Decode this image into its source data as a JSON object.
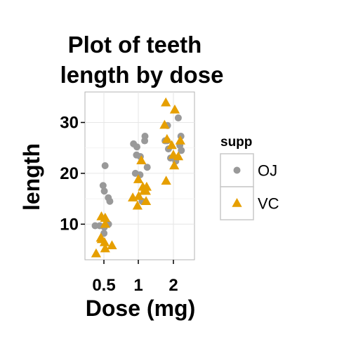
{
  "chart_data": {
    "type": "scatter",
    "title_lines": [
      "Plot of teeth",
      "length by dose"
    ],
    "xlabel": "Dose (mg)",
    "ylabel": "length",
    "categories": [
      "0.5",
      "1",
      "2"
    ],
    "x_ticks": [
      "0.5",
      "1",
      "2"
    ],
    "y_ticks": [
      10,
      20,
      30
    ],
    "ylim": [
      3,
      36
    ],
    "grid": true,
    "legend": {
      "title": "supp",
      "position": "right",
      "entries": [
        {
          "label": "OJ",
          "shape": "circle",
          "color": "#999999"
        },
        {
          "label": "VC",
          "shape": "triangle",
          "color": "#E69F00"
        }
      ]
    },
    "series": [
      {
        "name": "OJ",
        "color": "#999999",
        "points": [
          {
            "x": "0.5",
            "y": 15.2
          },
          {
            "x": "0.5",
            "y": 21.5
          },
          {
            "x": "0.5",
            "y": 17.6
          },
          {
            "x": "0.5",
            "y": 9.7
          },
          {
            "x": "0.5",
            "y": 14.5
          },
          {
            "x": "0.5",
            "y": 10.0
          },
          {
            "x": "0.5",
            "y": 8.2
          },
          {
            "x": "0.5",
            "y": 9.4
          },
          {
            "x": "0.5",
            "y": 16.5
          },
          {
            "x": "0.5",
            "y": 9.7
          },
          {
            "x": "1",
            "y": 19.7
          },
          {
            "x": "1",
            "y": 23.3
          },
          {
            "x": "1",
            "y": 23.6
          },
          {
            "x": "1",
            "y": 26.4
          },
          {
            "x": "1",
            "y": 20.0
          },
          {
            "x": "1",
            "y": 25.2
          },
          {
            "x": "1",
            "y": 25.8
          },
          {
            "x": "1",
            "y": 21.2
          },
          {
            "x": "1",
            "y": 14.5
          },
          {
            "x": "1",
            "y": 27.3
          },
          {
            "x": "2",
            "y": 25.5
          },
          {
            "x": "2",
            "y": 26.4
          },
          {
            "x": "2",
            "y": 22.4
          },
          {
            "x": "2",
            "y": 24.5
          },
          {
            "x": "2",
            "y": 24.8
          },
          {
            "x": "2",
            "y": 30.9
          },
          {
            "x": "2",
            "y": 26.4
          },
          {
            "x": "2",
            "y": 27.3
          },
          {
            "x": "2",
            "y": 29.4
          },
          {
            "x": "2",
            "y": 23.0
          }
        ]
      },
      {
        "name": "VC",
        "color": "#E69F00",
        "points": [
          {
            "x": "0.5",
            "y": 4.2
          },
          {
            "x": "0.5",
            "y": 11.5
          },
          {
            "x": "0.5",
            "y": 7.3
          },
          {
            "x": "0.5",
            "y": 5.8
          },
          {
            "x": "0.5",
            "y": 6.4
          },
          {
            "x": "0.5",
            "y": 10.0
          },
          {
            "x": "0.5",
            "y": 11.2
          },
          {
            "x": "0.5",
            "y": 11.2
          },
          {
            "x": "0.5",
            "y": 5.2
          },
          {
            "x": "0.5",
            "y": 7.0
          },
          {
            "x": "1",
            "y": 16.5
          },
          {
            "x": "1",
            "y": 16.5
          },
          {
            "x": "1",
            "y": 15.2
          },
          {
            "x": "1",
            "y": 17.3
          },
          {
            "x": "1",
            "y": 22.5
          },
          {
            "x": "1",
            "y": 17.3
          },
          {
            "x": "1",
            "y": 13.6
          },
          {
            "x": "1",
            "y": 14.5
          },
          {
            "x": "1",
            "y": 18.8
          },
          {
            "x": "1",
            "y": 15.5
          },
          {
            "x": "2",
            "y": 23.6
          },
          {
            "x": "2",
            "y": 18.5
          },
          {
            "x": "2",
            "y": 33.9
          },
          {
            "x": "2",
            "y": 25.5
          },
          {
            "x": "2",
            "y": 26.4
          },
          {
            "x": "2",
            "y": 32.5
          },
          {
            "x": "2",
            "y": 26.7
          },
          {
            "x": "2",
            "y": 21.5
          },
          {
            "x": "2",
            "y": 23.3
          },
          {
            "x": "2",
            "y": 29.5
          }
        ]
      }
    ]
  }
}
